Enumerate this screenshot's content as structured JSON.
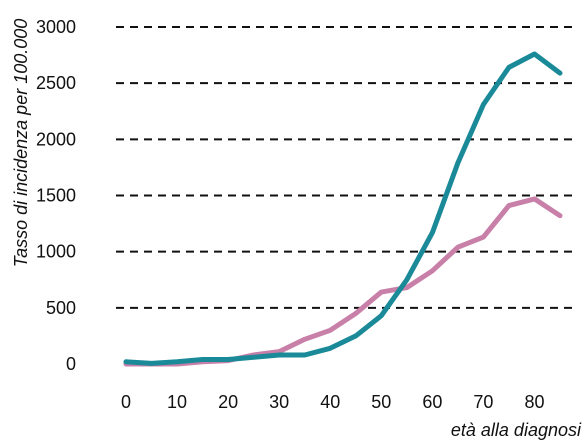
{
  "chart_data": {
    "type": "line",
    "title": "",
    "xlabel": "età alla diagnosi",
    "ylabel": "Tasso di incidenza per 100.000",
    "xlim": [
      0,
      85
    ],
    "ylim": [
      0,
      3000
    ],
    "grid": true,
    "x_ticks": [
      0,
      10,
      20,
      30,
      40,
      50,
      60,
      70,
      80
    ],
    "y_ticks": [
      0,
      500,
      1000,
      1500,
      2000,
      2500,
      3000
    ],
    "x": [
      0,
      5,
      10,
      15,
      20,
      25,
      30,
      35,
      40,
      45,
      50,
      55,
      60,
      65,
      70,
      75,
      80,
      85
    ],
    "series": [
      {
        "color": "#1a8a99",
        "values": [
          20,
          5,
          20,
          40,
          40,
          60,
          80,
          80,
          140,
          250,
          430,
          750,
          1170,
          1790,
          2310,
          2640,
          2760,
          2590
        ]
      },
      {
        "color": "#c87fa8",
        "values": [
          0,
          0,
          0,
          20,
          30,
          80,
          110,
          220,
          300,
          450,
          640,
          680,
          830,
          1040,
          1130,
          1410,
          1470,
          1320
        ]
      }
    ]
  }
}
